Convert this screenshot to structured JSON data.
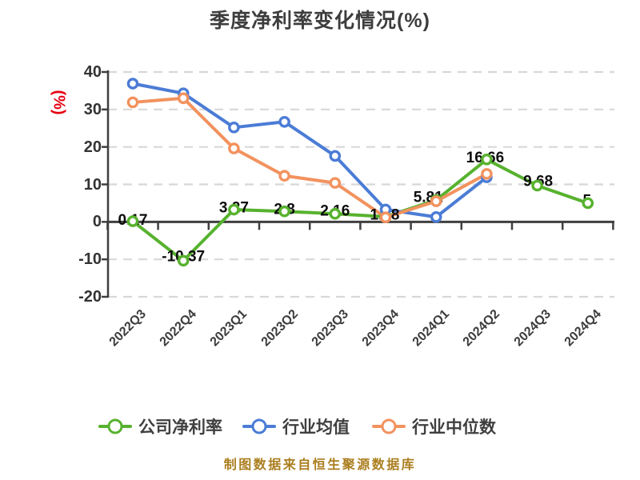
{
  "title": "季度净利率变化情况(%)",
  "y_axis": {
    "unit_label": "(%)",
    "ticks": [
      "40",
      "30",
      "20",
      "10",
      "0",
      "-10",
      "-20"
    ]
  },
  "chart_data": {
    "type": "line",
    "title": "季度净利率变化情况(%)",
    "categories": [
      "2022Q3",
      "2022Q4",
      "2023Q1",
      "2023Q2",
      "2023Q3",
      "2023Q4",
      "2024Q1",
      "2024Q2",
      "2024Q3",
      "2024Q4"
    ],
    "ylim": [
      -20,
      40
    ],
    "y_tick_step": 10,
    "grid": "horizontal dashed",
    "legend_position": "bottom",
    "series": [
      {
        "name": "公司净利率",
        "color": "#57b22e",
        "values": [
          0.17,
          -10.37,
          3.27,
          2.8,
          2.16,
          1.38,
          5.81,
          16.66,
          9.68,
          5
        ],
        "point_labels": [
          "0.17",
          "-10.37",
          "3.27",
          "2.8",
          "2.16",
          "1.38",
          "5.81",
          "16.66",
          "9.68",
          "5"
        ]
      },
      {
        "name": "行业均值",
        "color": "#4b7cd6",
        "values": [
          36.9,
          34.3,
          25.2,
          26.7,
          17.6,
          3.3,
          1.3,
          11.9
        ]
      },
      {
        "name": "行业中位数",
        "color": "#f2925e",
        "values": [
          31.9,
          33.0,
          19.6,
          12.3,
          10.4,
          1.2,
          5.5,
          12.8
        ]
      }
    ]
  },
  "footer": "制图数据来自恒生聚源数据库",
  "colors": {
    "axis": "#3f3f3f",
    "grid": "#d8d8d8",
    "data_label": "#0d0d0d",
    "y_unit_label": "#e60012",
    "footer": "#ab7e1f"
  }
}
